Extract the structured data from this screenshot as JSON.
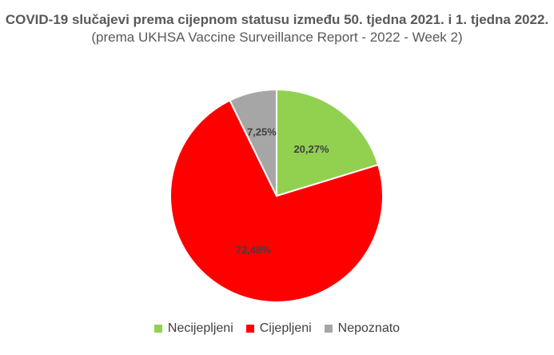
{
  "chart_data": {
    "type": "pie",
    "title_bold": "COVID-19 slučajevi prema cijepnom statusu između 50. tjedna 2021. i 1. tjedna 2022.",
    "title_regular": "(prema UKHSA Vaccine Surveillance Report - 2022 - Week 2)",
    "slices": [
      {
        "name": "Necijepljeni",
        "value": 20.27,
        "label": "20,27%",
        "color": "#92d050"
      },
      {
        "name": "Cijepljeni",
        "value": 72.48,
        "label": "72,48%",
        "color": "#ff0000"
      },
      {
        "name": "Nepoznato",
        "value": 7.25,
        "label": "7,25%",
        "color": "#a6a6a6"
      }
    ],
    "legend_position": "bottom"
  }
}
